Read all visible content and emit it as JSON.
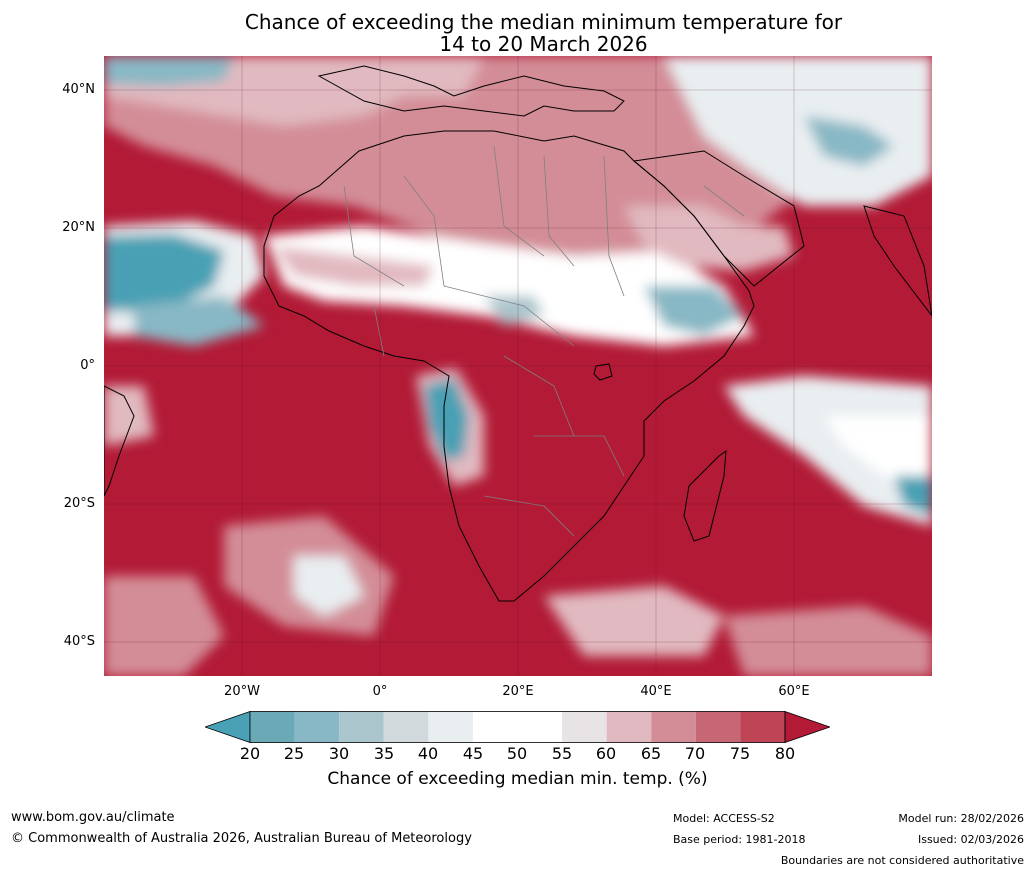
{
  "title": {
    "line1": "Chance of exceeding the median minimum temperature for",
    "line2": "14 to 20 March 2026"
  },
  "map": {
    "lat_labels": [
      "40°N",
      "20°N",
      "0°",
      "20°S",
      "40°S"
    ],
    "lon_labels": [
      "20°W",
      "0°",
      "20°E",
      "40°E",
      "60°E"
    ],
    "ocean_color": "#b21a36",
    "land_outline_color": "#000000",
    "border_color": "#808080"
  },
  "colorbar": {
    "ticks": [
      "20",
      "25",
      "30",
      "35",
      "40",
      "45",
      "50",
      "55",
      "60",
      "65",
      "70",
      "75",
      "80"
    ],
    "colors": [
      "#4aa0b4",
      "#6aaab7",
      "#88b8c5",
      "#aac5cc",
      "#d2d9dc",
      "#e9eef1",
      "#ffffff",
      "#ffffff",
      "#e8e4e6",
      "#e1b9c0",
      "#d38d97",
      "#c76674",
      "#bf4455",
      "#b21a36"
    ],
    "label": "Chance of exceeding median min. temp. (%)"
  },
  "footer": {
    "url": "www.bom.gov.au/climate",
    "copyright": "© Commonwealth of Australia 2026, Australian Bureau of Meteorology",
    "model": "Model: ACCESS-S2",
    "base_period": "Base period: 1981-2018",
    "model_run": "Model run: 28/02/2026",
    "issued": "Issued: 02/03/2026",
    "disclaimer": "Boundaries are not considered authoritative"
  }
}
